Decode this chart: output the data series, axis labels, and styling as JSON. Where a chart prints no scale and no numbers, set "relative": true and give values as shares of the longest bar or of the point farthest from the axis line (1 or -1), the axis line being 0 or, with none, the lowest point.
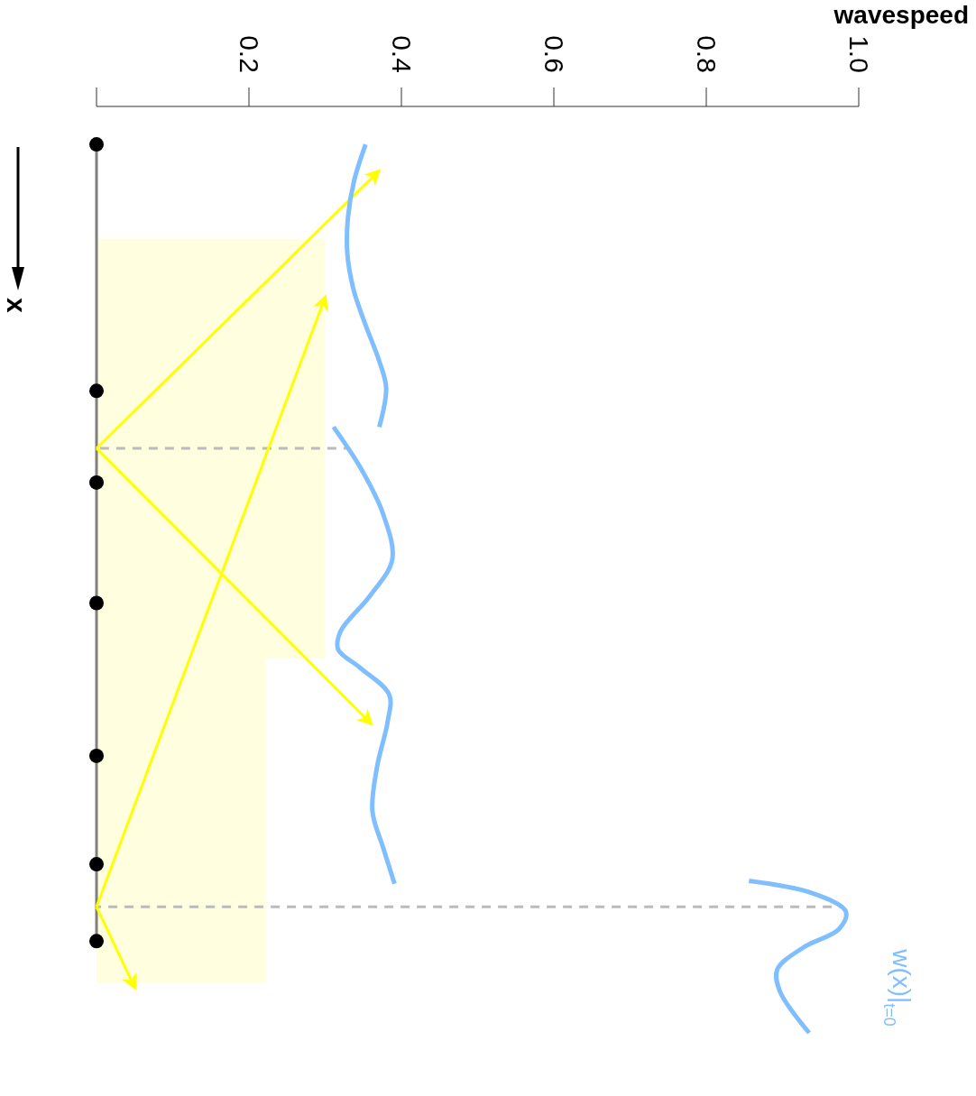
{
  "chart_data": {
    "type": "line",
    "xlabel": "wavespeed",
    "ylabel": "x",
    "xlim": [
      0,
      1
    ],
    "xticks": [
      {
        "value": 0,
        "label": null
      },
      0.2,
      0.4,
      0.6,
      0.8,
      {
        "value": 1,
        "label": "1.0"
      }
    ],
    "tick_labels": "x",
    "relative": true,
    "grid": false,
    "legend": false,
    "series": [
      {
        "type": "area",
        "color": "#ffffe0",
        "x": [
          0,
          0.3,
          0.3,
          0.222,
          0.222,
          0
        ],
        "values": [
          -0.143,
          -0.143,
          -0.596,
          -0.596,
          -0.946,
          -0.946
        ]
      },
      {
        "type": "line",
        "color": "#808080",
        "x": [
          0,
          0
        ],
        "values": [
          -0.041,
          -0.901
        ]
      },
      {
        "type": "line",
        "color": "#bbbbbb",
        "line_style": "dashed",
        "x": [
          0,
          0.33
        ],
        "values": [
          -0.369,
          -0.369
        ]
      },
      {
        "type": "line",
        "color": "#bbbbbb",
        "line_style": "dashed",
        "x": [
          0,
          0.98
        ],
        "values": [
          -0.864,
          -0.864
        ]
      },
      {
        "type": "line",
        "color": "#ffff00",
        "line_style": "solid",
        "x": [
          0,
          0.37
        ],
        "values": [
          -0.369,
          -0.07
        ]
      },
      {
        "type": "line",
        "color": "#ffff00",
        "line_style": "solid",
        "x": [
          0,
          0.36
        ],
        "values": [
          -0.369,
          -0.666
        ]
      },
      {
        "type": "line",
        "color": "#ffff00",
        "line_style": "solid",
        "x": [
          0,
          0.3
        ],
        "values": [
          -0.864,
          -0.206
        ]
      },
      {
        "type": "line",
        "color": "#ffff00",
        "line_style": "solid",
        "x": [
          0,
          0.05
        ],
        "values": [
          -0.864,
          -0.951
        ]
      },
      {
        "type": "scatter",
        "color": "#000000",
        "marker": "circle",
        "x": [
          0,
          0,
          0,
          0,
          0,
          0,
          0
        ],
        "values": [
          -0.041,
          -0.307,
          -0.406,
          -0.536,
          -0.701,
          -0.818,
          -0.901
        ]
      },
      {
        "name": "w(x)|$_{t=0}$",
        "color": "#80bfff",
        "x": [
          0.353,
          0.338,
          0.33,
          0.329,
          0.337,
          0.353,
          0.371,
          0.38,
          0.371,
          null,
          0.311,
          0.347,
          0.376,
          0.388,
          0.359,
          0.32,
          0.317,
          0.346,
          0.384,
          0.382,
          0.368,
          0.362,
          0.376,
          0.391,
          null,
          0.856,
          0.938,
          0.983,
          0.974,
          0.927,
          0.893,
          0.897,
          0.935
        ],
        "values": [
          -0.041,
          -0.08,
          -0.119,
          -0.158,
          -0.197,
          -0.236,
          -0.275,
          -0.304,
          -0.346,
          null,
          -0.346,
          -0.391,
          -0.44,
          -0.489,
          -0.528,
          -0.567,
          -0.586,
          -0.606,
          -0.635,
          -0.664,
          -0.713,
          -0.761,
          -0.8,
          -0.839,
          null,
          -0.836,
          -0.849,
          -0.869,
          -0.888,
          -0.908,
          -0.932,
          -0.956,
          -1
        ]
      }
    ]
  }
}
